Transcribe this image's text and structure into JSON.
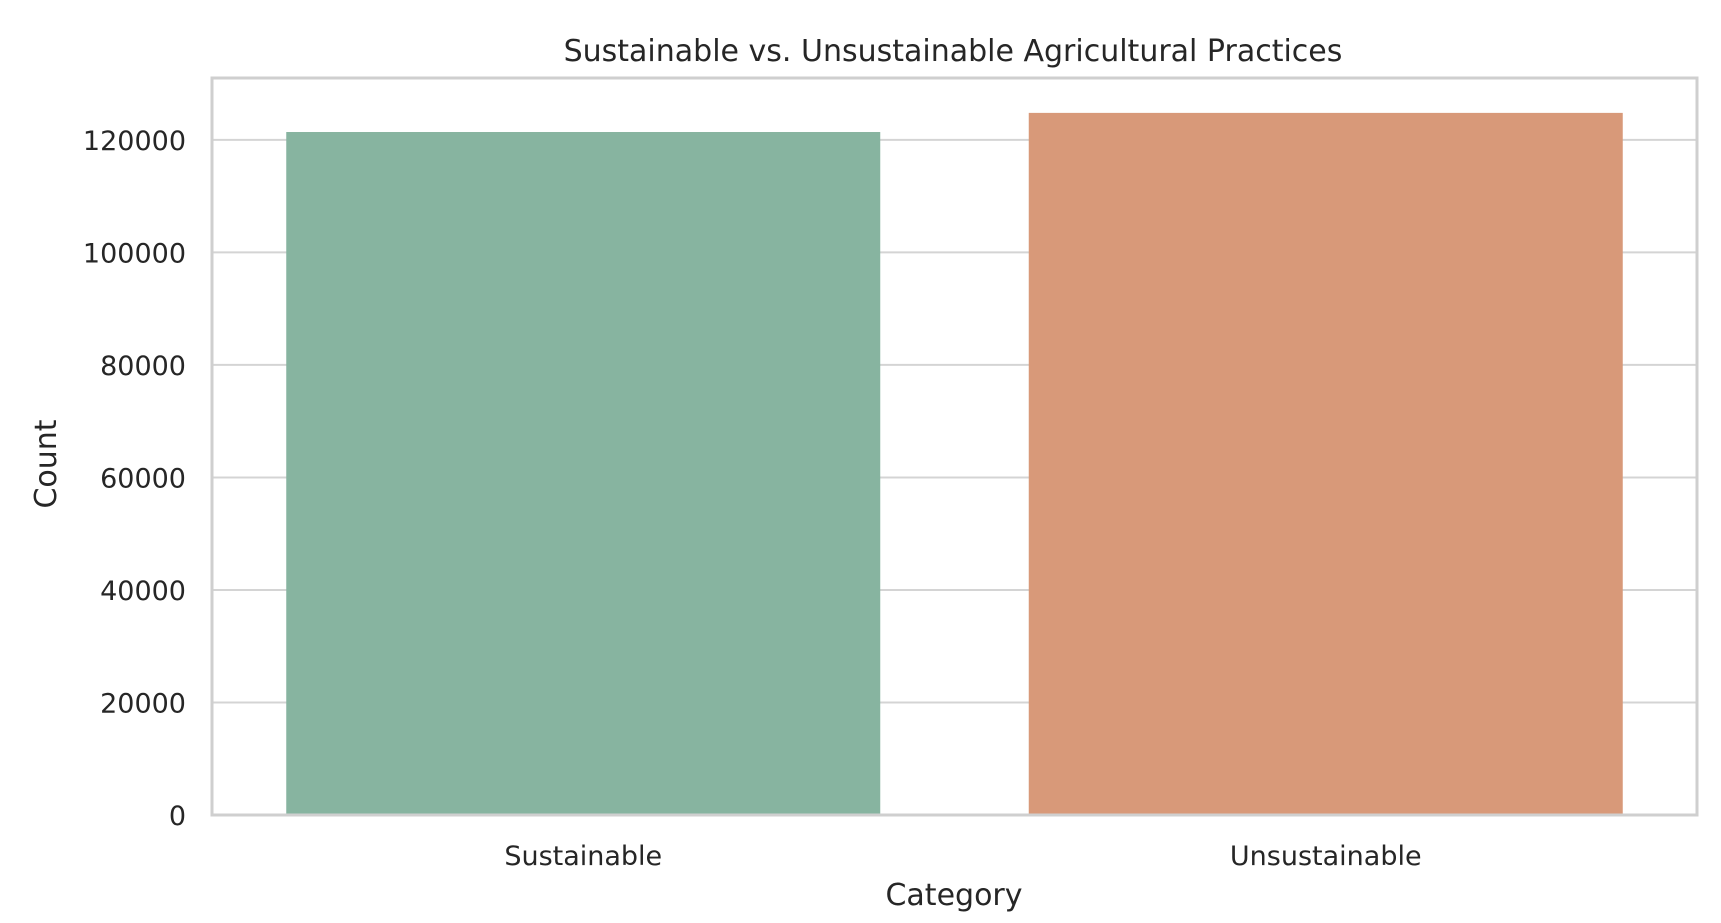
{
  "chart_data": {
    "type": "bar",
    "title": "Sustainable vs. Unsustainable Agricultural Practices",
    "xlabel": "Category",
    "ylabel": "Count",
    "categories": [
      "Sustainable",
      "Unsustainable"
    ],
    "values": [
      121400,
      124800
    ],
    "colors": [
      "#87b4a0",
      "#d89979"
    ],
    "ylim": [
      0,
      131000
    ],
    "yticks": [
      0,
      20000,
      40000,
      60000,
      80000,
      100000,
      120000
    ],
    "ytick_labels": [
      "0",
      "20000",
      "40000",
      "60000",
      "80000",
      "100000",
      "120000"
    ],
    "grid": true,
    "legend": "none"
  }
}
